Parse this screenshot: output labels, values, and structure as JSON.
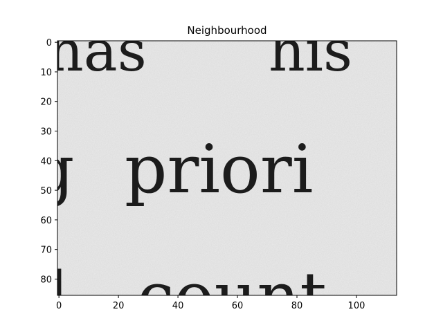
{
  "chart_data": {
    "type": "heatmap",
    "title": "Neighbourhood",
    "xlabel": "",
    "ylabel": "",
    "xlim": [
      -0.5,
      113.5
    ],
    "ylim": [
      85.5,
      -0.5
    ],
    "x_ticks": [
      0,
      20,
      40,
      60,
      80,
      100
    ],
    "y_ticks": [
      0,
      10,
      20,
      30,
      40,
      50,
      60,
      70,
      80
    ],
    "colormap": "gray",
    "grid": false,
    "image_text_rows": [
      {
        "row_center": 3,
        "text": "has   his"
      },
      {
        "row_center": 44,
        "text": "g  priori"
      },
      {
        "row_center": 82,
        "text": "d  count"
      }
    ]
  },
  "colors": {
    "background": "#ebebeb",
    "ink": "#1c1c1c",
    "axes": "#000000"
  }
}
